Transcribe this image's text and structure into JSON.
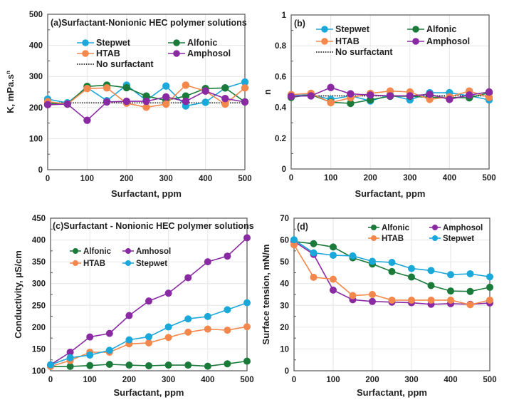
{
  "colors": {
    "Stepwet": "#1aa7d9",
    "Alfonic": "#1a7a3a",
    "HTAB": "#f4874b",
    "Amphosol": "#8a2aa3",
    "Amhosol": "#8a2aa3",
    "No surfactant": "#111111",
    "grid": "#e6e6e6",
    "axis": "#555555"
  },
  "chart_data": [
    {
      "id": "a",
      "type": "line",
      "title": "(a)Surfactant-Nonionic HEC polymer solutions",
      "xlabel": "Surfactant, ppm",
      "ylabel": "K, mPa.s",
      "ylabel_sup": "n",
      "xlim": [
        0,
        500
      ],
      "ylim": [
        0,
        500
      ],
      "xticks": [
        0,
        100,
        200,
        300,
        400,
        500
      ],
      "yticks": [
        0,
        100,
        200,
        300,
        400,
        500
      ],
      "grid": true,
      "legend": [
        "Stepwet",
        "Alfonic",
        "HTAB",
        "Amphosol",
        "No surfactant"
      ],
      "legend_placement": "top",
      "x": [
        0,
        50,
        100,
        150,
        200,
        250,
        300,
        350,
        400,
        450,
        500
      ],
      "series": [
        {
          "name": "Stepwet",
          "values": [
            227,
            215,
            264,
            222,
            272,
            223,
            269,
            205,
            217,
            263,
            282
          ]
        },
        {
          "name": "Alfonic",
          "values": [
            214,
            211,
            268,
            272,
            264,
            237,
            223,
            237,
            261,
            263,
            218
          ]
        },
        {
          "name": "HTAB",
          "values": [
            219,
            211,
            261,
            263,
            214,
            201,
            211,
            272,
            253,
            211,
            263
          ]
        },
        {
          "name": "Amphosol",
          "values": [
            209,
            211,
            159,
            218,
            220,
            220,
            234,
            220,
            253,
            229,
            218
          ]
        }
      ],
      "reference_line": {
        "name": "No surfactant",
        "value": 215
      }
    },
    {
      "id": "b",
      "type": "line",
      "title": "(b)",
      "xlabel": "Surfactant, ppm",
      "ylabel": "n",
      "xlim": [
        0,
        500
      ],
      "ylim": [
        0,
        1
      ],
      "xticks": [
        0,
        100,
        200,
        300,
        400,
        500
      ],
      "yticks": [
        0,
        0.2,
        0.4,
        0.6,
        0.8,
        1
      ],
      "grid": true,
      "legend": [
        "Stepwet",
        "Alfonic",
        "HTAB",
        "Amphosol",
        "No surfactant"
      ],
      "legend_placement": "top",
      "x": [
        0,
        50,
        100,
        150,
        200,
        250,
        300,
        350,
        400,
        450,
        500
      ],
      "series": [
        {
          "name": "Stepwet",
          "values": [
            0.475,
            0.483,
            0.452,
            0.475,
            0.442,
            0.48,
            0.449,
            0.495,
            0.495,
            0.475,
            0.449
          ]
        },
        {
          "name": "Alfonic",
          "values": [
            0.465,
            0.483,
            0.434,
            0.426,
            0.449,
            0.472,
            0.472,
            0.465,
            0.465,
            0.462,
            0.495
          ]
        },
        {
          "name": "HTAB",
          "values": [
            0.483,
            0.491,
            0.431,
            0.462,
            0.491,
            0.506,
            0.5,
            0.452,
            0.468,
            0.506,
            0.465
          ]
        },
        {
          "name": "Amphosol",
          "values": [
            0.472,
            0.475,
            0.529,
            0.488,
            0.48,
            0.475,
            0.475,
            0.485,
            0.452,
            0.48,
            0.5
          ]
        }
      ],
      "reference_line": {
        "name": "No surfactant",
        "value": 0.475
      }
    },
    {
      "id": "c",
      "type": "line",
      "title": "(c)Surfactant - Nonionic HEC polymer solutions",
      "xlabel": "Surfactant, ppm",
      "ylabel": "Conductivity, µS/cm",
      "xlim": [
        0,
        500
      ],
      "ylim": [
        100,
        450
      ],
      "xticks": [
        0,
        100,
        200,
        300,
        400,
        500
      ],
      "yticks": [
        100,
        150,
        200,
        250,
        300,
        350,
        400,
        450
      ],
      "grid": true,
      "legend": [
        "Alfonic",
        "Amhosol",
        "HTAB",
        "Stepwet"
      ],
      "legend_placement": "top-left",
      "x": [
        0,
        50,
        100,
        150,
        200,
        250,
        300,
        350,
        400,
        450,
        500
      ],
      "series": [
        {
          "name": "Alfonic",
          "values": [
            110,
            110,
            112,
            114.7,
            113,
            111.5,
            113,
            113,
            110.4,
            116,
            122
          ]
        },
        {
          "name": "Amhosol",
          "values": [
            113.7,
            142.6,
            177.5,
            185.7,
            226.7,
            260,
            278,
            313.5,
            350,
            363,
            405
          ]
        },
        {
          "name": "HTAB",
          "values": [
            110,
            123.5,
            142.6,
            142.6,
            161.7,
            164,
            176.5,
            188.5,
            195.6,
            193,
            201
          ]
        },
        {
          "name": "Stepwet",
          "values": [
            113.7,
            130,
            136,
            147,
            171,
            178,
            200.5,
            219,
            224.5,
            240,
            256
          ]
        }
      ]
    },
    {
      "id": "d",
      "type": "line",
      "title": "(d)",
      "xlabel": "Surfactant, ppm",
      "ylabel": "Surface tension, mN/m",
      "xlim": [
        0,
        500
      ],
      "ylim": [
        0,
        70
      ],
      "xticks": [
        0,
        100,
        200,
        300,
        400,
        500
      ],
      "yticks": [
        0,
        10,
        20,
        30,
        40,
        50,
        60,
        70
      ],
      "grid": true,
      "legend": [
        "Alfonic",
        "Amphosol",
        "HTAB",
        "Stepwet"
      ],
      "legend_placement": "top-right",
      "x": [
        0,
        50,
        100,
        150,
        200,
        250,
        300,
        350,
        400,
        450,
        500
      ],
      "series": [
        {
          "name": "Alfonic",
          "values": [
            59.3,
            58.3,
            56.8,
            51.8,
            49,
            45.5,
            43,
            39.1,
            36.6,
            36.4,
            38.3
          ]
        },
        {
          "name": "Amphosol",
          "values": [
            59.4,
            53.4,
            37,
            32.6,
            31.8,
            31.5,
            31.2,
            30.5,
            30.8,
            30.5,
            31.1
          ]
        },
        {
          "name": "HTAB",
          "values": [
            57.8,
            42.9,
            42,
            34.5,
            35,
            32.4,
            32.4,
            32.4,
            32.4,
            30.3,
            32.4
          ]
        },
        {
          "name": "Stepwet",
          "values": [
            60.1,
            54.1,
            53,
            52.7,
            50.2,
            49.7,
            46.9,
            46,
            44.1,
            44.5,
            43.1
          ]
        }
      ]
    }
  ]
}
